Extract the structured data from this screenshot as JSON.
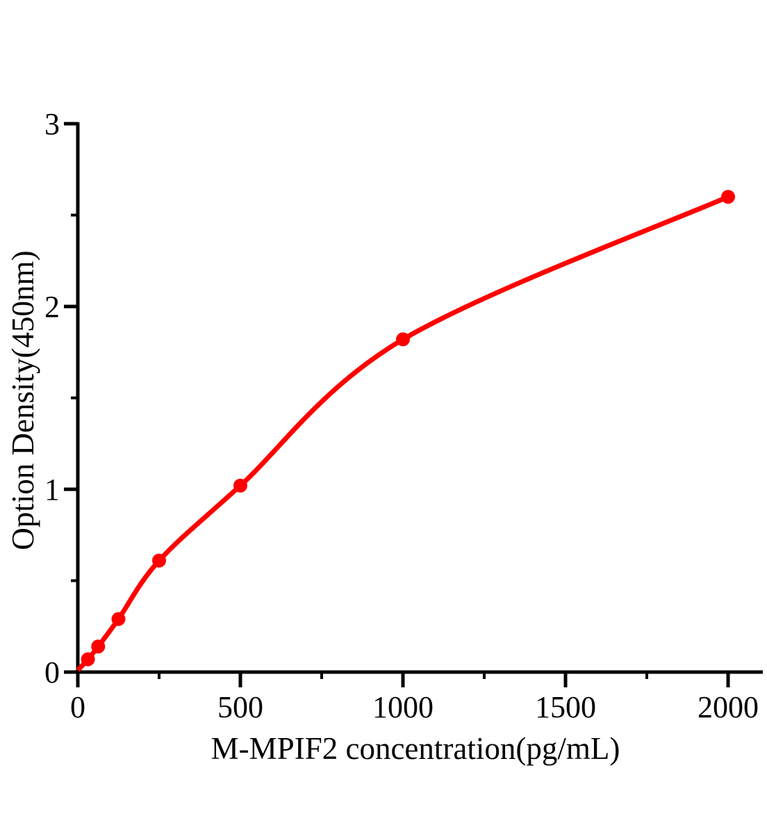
{
  "figure": {
    "background_color": "#ffffff",
    "axis_color": "#000000",
    "accent_color": "#ff0000"
  },
  "chart_data": {
    "type": "scatter",
    "curve": "smooth fitted line through data points, starting at origin",
    "title": "",
    "xlabel": "M-MPIF2 concentration(pg/mL)",
    "ylabel": "Option Density(450nm)",
    "x": [
      31.25,
      62.5,
      125,
      250,
      500,
      1000,
      2000
    ],
    "y": [
      0.07,
      0.14,
      0.29,
      0.61,
      1.02,
      1.82,
      2.6
    ],
    "curve_start": {
      "x": 0,
      "y": 0.01
    },
    "xlim": [
      0,
      2108
    ],
    "ylim": [
      0,
      3
    ],
    "x_major_ticks": [
      0,
      500,
      1000,
      1500,
      2000
    ],
    "x_major_tick_labels": [
      "0",
      "500",
      "1000",
      "1500",
      "2000"
    ],
    "x_minor_ticks": [
      250,
      750,
      1250,
      1750
    ],
    "y_major_ticks": [
      0,
      1,
      2,
      3
    ],
    "y_major_tick_labels": [
      "0",
      "1",
      "2",
      "3"
    ],
    "y_minor_ticks": [
      0.5,
      1.5,
      2.5
    ],
    "grid": false,
    "legend": false,
    "line_color": "#ff0000",
    "marker_color": "#ff0000",
    "marker_shape": "filled-circle"
  }
}
